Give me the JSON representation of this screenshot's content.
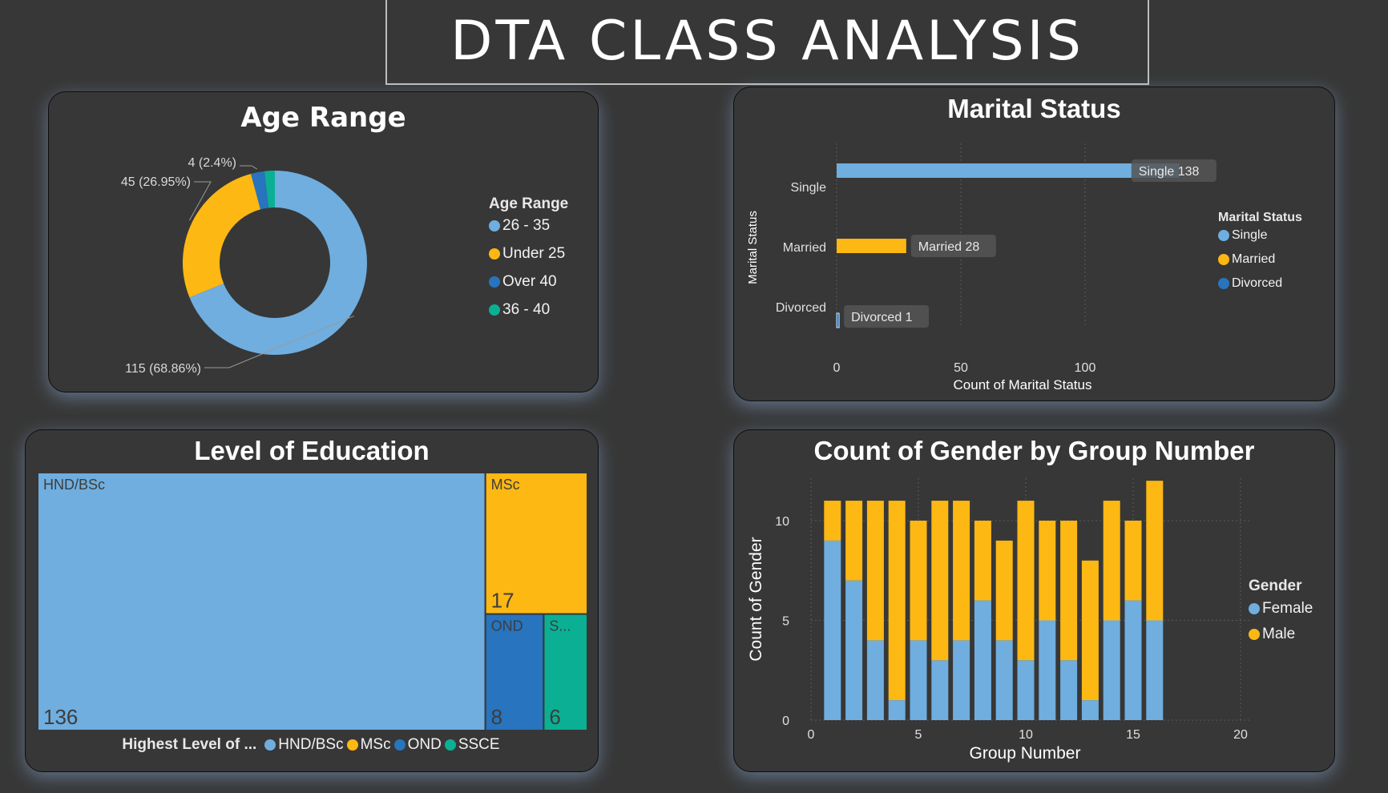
{
  "page": {
    "title": "DTA CLASS ANALYSIS"
  },
  "colors": {
    "blue": "#6FAEDF",
    "yellow": "#FDB813",
    "darkblue": "#2874BE",
    "teal": "#0BB094",
    "background": "#373737"
  },
  "chart_data": [
    {
      "id": "age",
      "type": "pie",
      "title": "Age Range",
      "legend_title": "Age Range",
      "legend_placement": "right",
      "slices": [
        {
          "label": "26 - 35",
          "value": 115,
          "data_label": "115 (68.86%)",
          "color": "#6FAEDF"
        },
        {
          "label": "Under 25",
          "value": 45,
          "data_label": "45 (26.95%)",
          "color": "#FDB813"
        },
        {
          "label": "Over 40",
          "value": 4,
          "data_label": "4 (2.4%)",
          "color": "#2874BE"
        },
        {
          "label": "36 - 40",
          "value": 3,
          "data_label": "",
          "color": "#0BB094"
        }
      ]
    },
    {
      "id": "marital",
      "type": "bar",
      "orientation": "horizontal",
      "title": "Marital Status",
      "xlabel": "Count of Marital Status",
      "ylabel": "Marital Status",
      "legend_title": "Marital Status",
      "legend_placement": "right",
      "xlim": [
        0,
        150
      ],
      "xticks": [
        0,
        50,
        100
      ],
      "grid": true,
      "categories": [
        "Single",
        "Married",
        "Divorced"
      ],
      "values": [
        138,
        28,
        1
      ],
      "data_labels": [
        "Single 138",
        "Married 28",
        "Divorced 1"
      ],
      "colors": [
        "#6FAEDF",
        "#FDB813",
        "#2874BE"
      ]
    },
    {
      "id": "education",
      "type": "treemap",
      "title": "Level of Education",
      "legend_title": "Highest Level of ...",
      "legend_placement": "bottom",
      "items": [
        {
          "label": "HND/BSc",
          "display_label": "HND/BSc",
          "value": 136,
          "color": "#6FAEDF"
        },
        {
          "label": "MSc",
          "display_label": "MSc",
          "value": 17,
          "color": "#FDB813"
        },
        {
          "label": "OND",
          "display_label": "OND",
          "value": 8,
          "color": "#2874BE"
        },
        {
          "label": "SSCE",
          "display_label": "S...",
          "value": 6,
          "color": "#0BB094"
        }
      ]
    },
    {
      "id": "gender",
      "type": "bar",
      "stacked": true,
      "title": "Count of Gender by Group Number",
      "xlabel": "Group Number",
      "ylabel": "Count of Gender",
      "legend_title": "Gender",
      "legend_placement": "right",
      "xlim": [
        0,
        20
      ],
      "ylim": [
        0,
        12
      ],
      "xticks": [
        0,
        5,
        10,
        15,
        20
      ],
      "yticks": [
        0,
        5,
        10
      ],
      "grid": true,
      "x": [
        1,
        2,
        3,
        4,
        5,
        6,
        7,
        8,
        9,
        10,
        11,
        12,
        13,
        14,
        15,
        16
      ],
      "series": [
        {
          "name": "Female",
          "color": "#6FAEDF",
          "values": [
            9,
            7,
            4,
            1,
            4,
            3,
            4,
            6,
            4,
            3,
            5,
            3,
            1,
            5,
            6,
            5
          ]
        },
        {
          "name": "Male",
          "color": "#FDB813",
          "values": [
            2,
            4,
            7,
            10,
            6,
            8,
            7,
            4,
            5,
            8,
            5,
            7,
            7,
            6,
            4,
            7
          ]
        }
      ]
    }
  ]
}
